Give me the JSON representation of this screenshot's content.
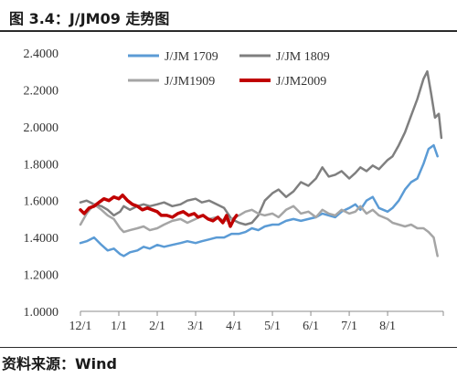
{
  "header": {
    "title": "图 3.4：J/JM09 走势图"
  },
  "footer": {
    "source": "资料来源：Wind"
  },
  "chart_data": {
    "type": "line",
    "title": "",
    "xlabel": "",
    "ylabel": "",
    "ylim": [
      1.0,
      2.4
    ],
    "yticks": [
      "2.4000",
      "2.2000",
      "2.0000",
      "1.8000",
      "1.6000",
      "1.4000",
      "1.2000",
      "1.0000"
    ],
    "ytick_values": [
      2.4,
      2.2,
      2.0,
      1.8,
      1.6,
      1.4,
      1.2,
      1.0
    ],
    "xticks": [
      "12/1",
      "1/1",
      "2/1",
      "3/1",
      "4/1",
      "5/1",
      "6/1",
      "7/1",
      "8/1"
    ],
    "x_range": [
      "12/1",
      "9/13"
    ],
    "grid": false,
    "legend_position": "top",
    "series": [
      {
        "name": "J/JM 1709",
        "color": "#5b9bd5",
        "points": [
          [
            "12/1",
            1.37
          ],
          [
            "12/6",
            1.38
          ],
          [
            "12/12",
            1.4
          ],
          [
            "12/18",
            1.36
          ],
          [
            "12/23",
            1.33
          ],
          [
            "12/28",
            1.34
          ],
          [
            "1/2",
            1.31
          ],
          [
            "1/5",
            1.3
          ],
          [
            "1/10",
            1.32
          ],
          [
            "1/16",
            1.33
          ],
          [
            "1/21",
            1.35
          ],
          [
            "1/26",
            1.34
          ],
          [
            "2/1",
            1.36
          ],
          [
            "2/6",
            1.35
          ],
          [
            "2/12",
            1.36
          ],
          [
            "2/18",
            1.37
          ],
          [
            "2/23",
            1.38
          ],
          [
            "3/1",
            1.37
          ],
          [
            "3/6",
            1.38
          ],
          [
            "3/12",
            1.39
          ],
          [
            "3/18",
            1.4
          ],
          [
            "3/24",
            1.4
          ],
          [
            "3/30",
            1.42
          ],
          [
            "4/5",
            1.42
          ],
          [
            "4/10",
            1.43
          ],
          [
            "4/15",
            1.45
          ],
          [
            "4/20",
            1.44
          ],
          [
            "4/25",
            1.46
          ],
          [
            "5/1",
            1.47
          ],
          [
            "5/6",
            1.47
          ],
          [
            "5/12",
            1.49
          ],
          [
            "5/18",
            1.5
          ],
          [
            "5/24",
            1.49
          ],
          [
            "5/30",
            1.5
          ],
          [
            "6/5",
            1.51
          ],
          [
            "6/10",
            1.53
          ],
          [
            "6/15",
            1.52
          ],
          [
            "6/20",
            1.51
          ],
          [
            "6/25",
            1.54
          ],
          [
            "7/1",
            1.56
          ],
          [
            "7/6",
            1.58
          ],
          [
            "7/10",
            1.55
          ],
          [
            "7/15",
            1.6
          ],
          [
            "7/20",
            1.62
          ],
          [
            "7/25",
            1.56
          ],
          [
            "8/1",
            1.54
          ],
          [
            "8/5",
            1.56
          ],
          [
            "8/10",
            1.6
          ],
          [
            "8/15",
            1.66
          ],
          [
            "8/20",
            1.7
          ],
          [
            "8/25",
            1.72
          ],
          [
            "8/30",
            1.8
          ],
          [
            "9/3",
            1.88
          ],
          [
            "9/7",
            1.9
          ],
          [
            "9/10",
            1.84
          ]
        ]
      },
      {
        "name": "J/JM 1809",
        "color": "#7f7f7f",
        "points": [
          [
            "12/1",
            1.59
          ],
          [
            "12/6",
            1.6
          ],
          [
            "12/12",
            1.58
          ],
          [
            "12/18",
            1.57
          ],
          [
            "12/23",
            1.55
          ],
          [
            "12/28",
            1.52
          ],
          [
            "1/2",
            1.54
          ],
          [
            "1/5",
            1.57
          ],
          [
            "1/10",
            1.55
          ],
          [
            "1/16",
            1.57
          ],
          [
            "1/21",
            1.58
          ],
          [
            "1/26",
            1.57
          ],
          [
            "2/1",
            1.58
          ],
          [
            "2/6",
            1.59
          ],
          [
            "2/12",
            1.57
          ],
          [
            "2/18",
            1.58
          ],
          [
            "2/23",
            1.6
          ],
          [
            "3/1",
            1.61
          ],
          [
            "3/6",
            1.59
          ],
          [
            "3/12",
            1.6
          ],
          [
            "3/18",
            1.58
          ],
          [
            "3/24",
            1.56
          ],
          [
            "3/30",
            1.5
          ],
          [
            "4/5",
            1.48
          ],
          [
            "4/10",
            1.47
          ],
          [
            "4/15",
            1.48
          ],
          [
            "4/20",
            1.52
          ],
          [
            "4/25",
            1.6
          ],
          [
            "5/1",
            1.64
          ],
          [
            "5/6",
            1.66
          ],
          [
            "5/12",
            1.62
          ],
          [
            "5/18",
            1.65
          ],
          [
            "5/24",
            1.7
          ],
          [
            "5/30",
            1.68
          ],
          [
            "6/5",
            1.72
          ],
          [
            "6/10",
            1.78
          ],
          [
            "6/15",
            1.73
          ],
          [
            "6/20",
            1.74
          ],
          [
            "6/25",
            1.76
          ],
          [
            "7/1",
            1.72
          ],
          [
            "7/6",
            1.75
          ],
          [
            "7/10",
            1.78
          ],
          [
            "7/15",
            1.76
          ],
          [
            "7/20",
            1.79
          ],
          [
            "7/25",
            1.77
          ],
          [
            "8/1",
            1.82
          ],
          [
            "8/5",
            1.84
          ],
          [
            "8/10",
            1.9
          ],
          [
            "8/15",
            1.97
          ],
          [
            "8/20",
            2.06
          ],
          [
            "8/25",
            2.15
          ],
          [
            "8/30",
            2.26
          ],
          [
            "9/2",
            2.3
          ],
          [
            "9/5",
            2.18
          ],
          [
            "9/8",
            2.05
          ],
          [
            "9/11",
            2.07
          ],
          [
            "9/13",
            1.94
          ]
        ]
      },
      {
        "name": "J/JM1909",
        "color": "#a5a5a5",
        "points": [
          [
            "12/1",
            1.47
          ],
          [
            "12/6",
            1.53
          ],
          [
            "12/12",
            1.58
          ],
          [
            "12/18",
            1.55
          ],
          [
            "12/23",
            1.52
          ],
          [
            "12/28",
            1.5
          ],
          [
            "1/2",
            1.45
          ],
          [
            "1/5",
            1.43
          ],
          [
            "1/10",
            1.44
          ],
          [
            "1/16",
            1.45
          ],
          [
            "1/21",
            1.46
          ],
          [
            "1/26",
            1.44
          ],
          [
            "2/1",
            1.45
          ],
          [
            "2/6",
            1.47
          ],
          [
            "2/12",
            1.49
          ],
          [
            "2/18",
            1.5
          ],
          [
            "2/23",
            1.48
          ],
          [
            "3/1",
            1.5
          ],
          [
            "3/6",
            1.52
          ],
          [
            "3/12",
            1.5
          ],
          [
            "3/18",
            1.51
          ],
          [
            "3/24",
            1.49
          ],
          [
            "3/30",
            1.5
          ],
          [
            "4/5",
            1.52
          ],
          [
            "4/10",
            1.54
          ],
          [
            "4/15",
            1.55
          ],
          [
            "4/20",
            1.53
          ],
          [
            "4/25",
            1.52
          ],
          [
            "5/1",
            1.53
          ],
          [
            "5/6",
            1.51
          ],
          [
            "5/12",
            1.55
          ],
          [
            "5/18",
            1.57
          ],
          [
            "5/24",
            1.53
          ],
          [
            "5/30",
            1.54
          ],
          [
            "6/5",
            1.51
          ],
          [
            "6/10",
            1.55
          ],
          [
            "6/15",
            1.53
          ],
          [
            "6/20",
            1.52
          ],
          [
            "6/25",
            1.55
          ],
          [
            "7/1",
            1.53
          ],
          [
            "7/6",
            1.54
          ],
          [
            "7/10",
            1.57
          ],
          [
            "7/15",
            1.53
          ],
          [
            "7/20",
            1.55
          ],
          [
            "7/25",
            1.52
          ],
          [
            "8/1",
            1.5
          ],
          [
            "8/5",
            1.48
          ],
          [
            "8/10",
            1.47
          ],
          [
            "8/15",
            1.46
          ],
          [
            "8/20",
            1.47
          ],
          [
            "8/25",
            1.45
          ],
          [
            "8/30",
            1.45
          ],
          [
            "9/3",
            1.43
          ],
          [
            "9/7",
            1.4
          ],
          [
            "9/10",
            1.3
          ]
        ]
      },
      {
        "name": "J/JM2009",
        "color": "#c00000",
        "points": [
          [
            "12/1",
            1.55
          ],
          [
            "12/4",
            1.53
          ],
          [
            "12/8",
            1.56
          ],
          [
            "12/12",
            1.57
          ],
          [
            "12/16",
            1.59
          ],
          [
            "12/20",
            1.61
          ],
          [
            "12/24",
            1.6
          ],
          [
            "12/28",
            1.62
          ],
          [
            "1/1",
            1.61
          ],
          [
            "1/4",
            1.63
          ],
          [
            "1/8",
            1.6
          ],
          [
            "1/12",
            1.58
          ],
          [
            "1/16",
            1.57
          ],
          [
            "1/20",
            1.55
          ],
          [
            "1/24",
            1.56
          ],
          [
            "1/28",
            1.55
          ],
          [
            "2/1",
            1.54
          ],
          [
            "2/4",
            1.52
          ],
          [
            "2/8",
            1.52
          ],
          [
            "2/12",
            1.51
          ],
          [
            "2/16",
            1.53
          ],
          [
            "2/20",
            1.54
          ],
          [
            "2/24",
            1.52
          ],
          [
            "2/28",
            1.53
          ],
          [
            "3/3",
            1.51
          ],
          [
            "3/7",
            1.52
          ],
          [
            "3/11",
            1.5
          ],
          [
            "3/15",
            1.49
          ],
          [
            "3/19",
            1.51
          ],
          [
            "3/23",
            1.48
          ],
          [
            "3/26",
            1.52
          ],
          [
            "3/29",
            1.46
          ],
          [
            "4/1",
            1.5
          ],
          [
            "4/3",
            1.52
          ]
        ]
      }
    ]
  }
}
